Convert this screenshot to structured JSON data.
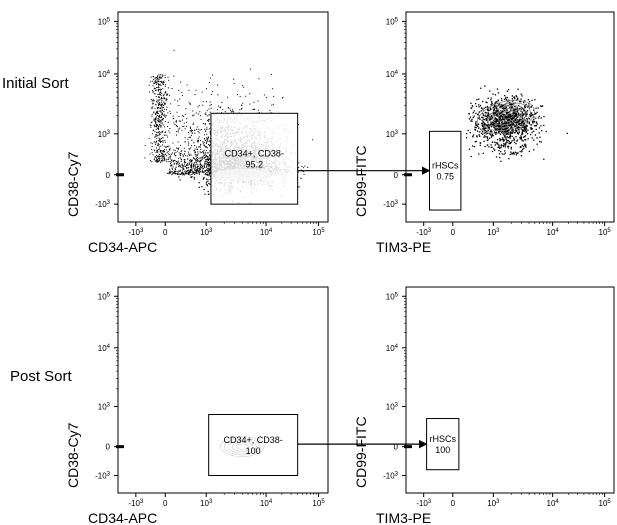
{
  "row_labels": [
    "Initial Sort",
    "Post Sort"
  ],
  "chart_data": [
    {
      "type": "scatter",
      "title": "",
      "xlabel": "CD34-APC",
      "ylabel": "CD38-Cy7",
      "x_scale": "biexponential",
      "y_scale": "biexponential",
      "x_ticks": [
        "-10^3",
        "0",
        "10^3",
        "10^4",
        "10^5"
      ],
      "y_ticks": [
        "-10^3",
        "0",
        "10^3",
        "10^4",
        "10^5"
      ],
      "gate": {
        "label": "CD34+, CD38-",
        "value": "95.2"
      }
    },
    {
      "type": "scatter",
      "title": "",
      "xlabel": "TIM3-PE",
      "ylabel": "CD99-FITC",
      "x_scale": "biexponential",
      "y_scale": "biexponential",
      "x_ticks": [
        "-10^3",
        "0",
        "10^3",
        "10^4",
        "10^5"
      ],
      "y_ticks": [
        "-10^3",
        "0",
        "10^3",
        "10^4",
        "10^5"
      ],
      "gate": {
        "label": "rHSCs",
        "value": "0.75"
      }
    },
    {
      "type": "scatter",
      "title": "",
      "xlabel": "CD34-APC",
      "ylabel": "CD38-Cy7",
      "x_scale": "biexponential",
      "y_scale": "biexponential",
      "x_ticks": [
        "-10^3",
        "0",
        "10^3",
        "10^4",
        "10^5"
      ],
      "y_ticks": [
        "-10^3",
        "0",
        "10^3",
        "10^4",
        "10^5"
      ],
      "gate": {
        "label": "CD34+, CD38-",
        "value": "100"
      }
    },
    {
      "type": "scatter",
      "title": "",
      "xlabel": "TIM3-PE",
      "ylabel": "CD99-FITC",
      "x_scale": "biexponential",
      "y_scale": "biexponential",
      "x_ticks": [
        "-10^3",
        "0",
        "10^3",
        "10^4",
        "10^5"
      ],
      "y_ticks": [
        "-10^3",
        "0",
        "10^3",
        "10^4",
        "10^5"
      ],
      "gate": {
        "label": "rHSCs",
        "value": "100"
      }
    }
  ]
}
